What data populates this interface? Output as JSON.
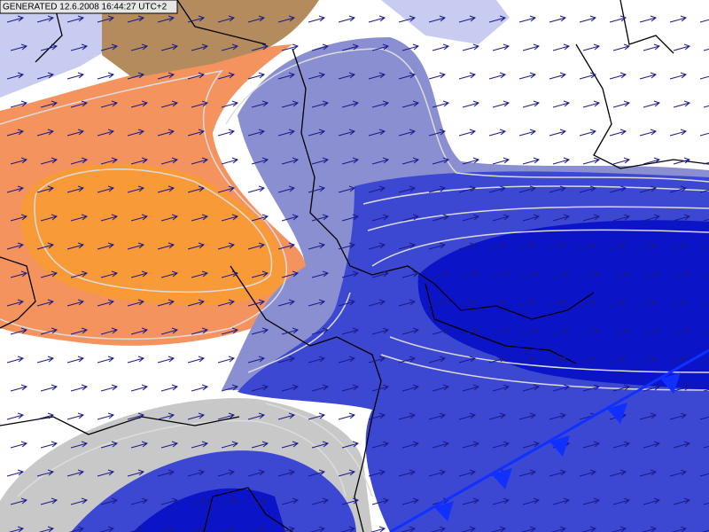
{
  "header": {
    "generated": "GENERATED 12.6.2008 16:44:27 UTC+2"
  }
}
